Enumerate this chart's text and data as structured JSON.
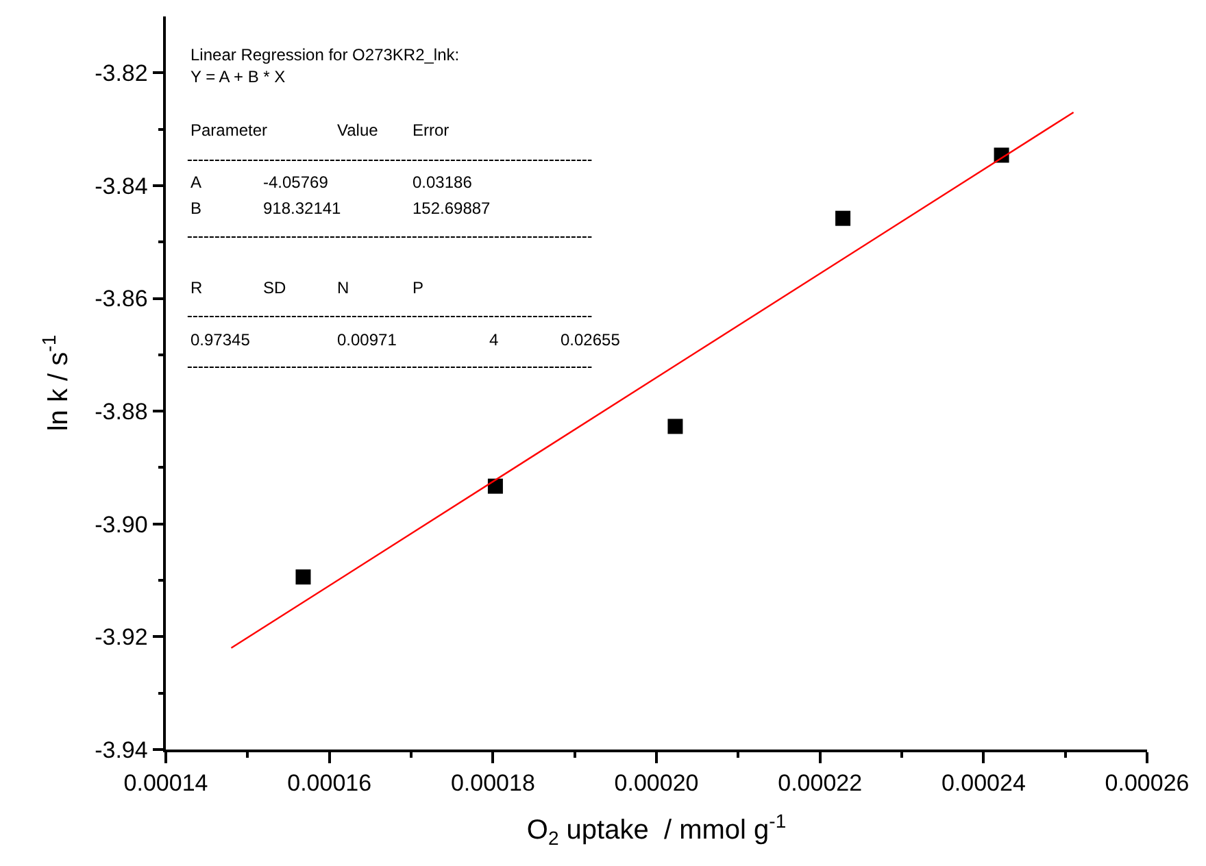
{
  "chart_data": {
    "type": "scatter",
    "xlabel": "O$_{2}$ uptake  / mmol g$^{-1}$",
    "ylabel": "ln k / s$^{-1}$",
    "series": [
      {
        "color": "#000000",
        "marker": "square",
        "x": [
          0.0001568,
          0.0001803,
          0.0002023,
          0.0002228,
          0.0002422
        ],
        "values": [
          -3.9094,
          -3.8933,
          -3.8827,
          -3.8458,
          -3.8346
        ]
      },
      {
        "type": "line",
        "color": "#ff0000",
        "marker": "none",
        "line_style": "solid",
        "x": [
          0.000148,
          0.000251
        ],
        "values": [
          -3.922,
          -3.827
        ]
      }
    ],
    "xlim": [
      0.00014,
      0.00026
    ],
    "xticks": [
      0.00014,
      {
        "value": 0.00015,
        "label": null
      },
      0.00016,
      {
        "value": 0.00017,
        "label": null
      },
      0.00018,
      {
        "value": 0.00019,
        "label": null
      },
      {
        "value": 0.0002,
        "label": "0.00020"
      },
      {
        "value": 0.00021,
        "label": null
      },
      0.00022,
      {
        "value": 0.00023,
        "label": null
      },
      0.00024,
      {
        "value": 0.00025,
        "label": null
      },
      0.00026
    ],
    "ylim": [
      -3.94,
      -3.81
    ],
    "yticks": [
      -3.94,
      {
        "value": -3.93,
        "label": null
      },
      -3.92,
      {
        "value": -3.91,
        "label": null
      },
      {
        "value": -3.9,
        "label": "-3.90"
      },
      {
        "value": -3.89,
        "label": null
      },
      -3.88,
      {
        "value": -3.87,
        "label": null
      },
      -3.86,
      {
        "value": -3.85,
        "label": null
      },
      -3.84,
      {
        "value": -3.83,
        "label": null
      },
      -3.82
    ],
    "annotations": [
      "Linear Regression for O273KR2_lnk:",
      "Y = A + B * X",
      "Parameter",
      "Value",
      "Error",
      "A",
      "-4.05769",
      "0.03186",
      "B",
      "918.32141",
      "152.69887",
      "R",
      "SD",
      "N",
      "P",
      "0.97345",
      "0.00971",
      "4",
      "0.02655"
    ]
  }
}
